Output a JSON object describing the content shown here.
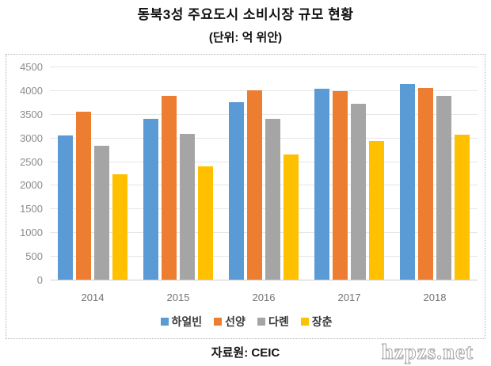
{
  "title": "동북3성 주요도시 소비시장 규모 현황",
  "subtitle": "(단위: 억 위안)",
  "source": "자료원: CEIC",
  "watermark": "hzpzs.net",
  "chart_data": {
    "type": "bar",
    "title": "동북3성 주요도시 소비시장 규모 현황",
    "subtitle_unit": "(단위: 억 위안)",
    "categories": [
      "2014",
      "2015",
      "2016",
      "2017",
      "2018"
    ],
    "series": [
      {
        "name": "하얼빈",
        "color": "#5B9BD5",
        "values": [
          3050,
          3390,
          3740,
          4040,
          4130
        ]
      },
      {
        "name": "선양",
        "color": "#ED7D31",
        "values": [
          3550,
          3880,
          4000,
          3990,
          4050
        ]
      },
      {
        "name": "다롄",
        "color": "#A5A5A5",
        "values": [
          2830,
          3080,
          3400,
          3720,
          3890
        ]
      },
      {
        "name": "장춘",
        "color": "#FFC000",
        "values": [
          2220,
          2400,
          2640,
          2920,
          3060
        ]
      }
    ],
    "ylim": [
      0,
      4500
    ],
    "ytick_step": 500,
    "grid": true,
    "legend_position": "bottom",
    "xlabel": "",
    "ylabel": ""
  }
}
